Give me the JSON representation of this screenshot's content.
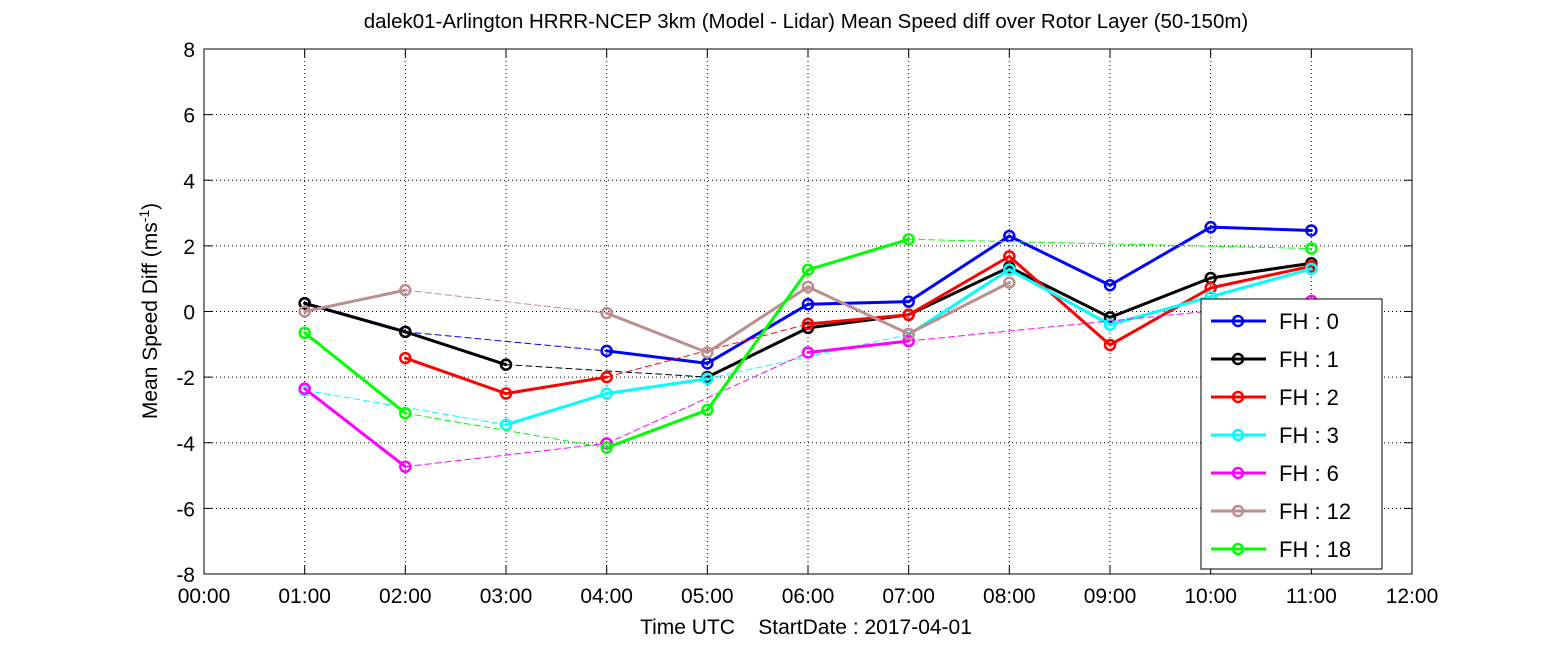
{
  "chart_data": {
    "type": "line",
    "title": "dalek01-Arlington HRRR-NCEP 3km (Model - Lidar) Mean Speed diff over Rotor Layer (50-150m)",
    "xlabel": "Time UTC    StartDate : 2017-04-01",
    "ylabel_main": "Mean Speed Diff (ms",
    "ylabel_sup": "-1",
    "ylabel_close": ")",
    "xlim": [
      0,
      12
    ],
    "ylim": [
      -8,
      8
    ],
    "grid": "dotted",
    "x_ticks": [
      0,
      1,
      2,
      3,
      4,
      5,
      6,
      7,
      8,
      9,
      10,
      11,
      12
    ],
    "x_tick_labels": [
      "00:00",
      "01:00",
      "02:00",
      "03:00",
      "04:00",
      "05:00",
      "06:00",
      "07:00",
      "08:00",
      "09:00",
      "10:00",
      "11:00",
      "12:00"
    ],
    "y_ticks": [
      -8,
      -6,
      -4,
      -2,
      0,
      2,
      4,
      6,
      8
    ],
    "y_tick_labels": [
      "-8",
      "-6",
      "-4",
      "-2",
      "0",
      "2",
      "4",
      "6",
      "8"
    ],
    "legend_position": "bottom-right",
    "series": [
      {
        "name": "FH : 0",
        "color": "#0000ff",
        "points": [
          [
            1,
            0.25
          ],
          [
            2,
            -0.62
          ],
          [
            4,
            -1.2
          ],
          [
            5,
            -1.58
          ],
          [
            6,
            0.22
          ],
          [
            7,
            0.3
          ],
          [
            8,
            2.3
          ],
          [
            9,
            0.8
          ],
          [
            10,
            2.57
          ],
          [
            11,
            2.47
          ]
        ]
      },
      {
        "name": "FH : 1",
        "color": "#000000",
        "points": [
          [
            1,
            0.25
          ],
          [
            2,
            -0.62
          ],
          [
            3,
            -1.62
          ],
          [
            5,
            -2.0
          ],
          [
            6,
            -0.5
          ],
          [
            7,
            -0.1
          ],
          [
            8,
            1.35
          ],
          [
            9,
            -0.18
          ],
          [
            10,
            1.02
          ],
          [
            11,
            1.47
          ]
        ]
      },
      {
        "name": "FH : 2",
        "color": "#ff0000",
        "points": [
          [
            2,
            -1.42
          ],
          [
            3,
            -2.5
          ],
          [
            4,
            -2.0
          ],
          [
            6,
            -0.38
          ],
          [
            7,
            -0.1
          ],
          [
            8,
            1.68
          ],
          [
            9,
            -1.02
          ],
          [
            10,
            0.72
          ],
          [
            11,
            1.38
          ]
        ]
      },
      {
        "name": "FH : 3",
        "color": "#00ffff",
        "points": [
          [
            1,
            -2.4
          ],
          [
            3,
            -3.45
          ],
          [
            4,
            -2.5
          ],
          [
            5,
            -2.05
          ],
          [
            7,
            -0.7
          ],
          [
            8,
            1.28
          ],
          [
            9,
            -0.4
          ],
          [
            10,
            0.45
          ],
          [
            11,
            1.3
          ]
        ]
      },
      {
        "name": "FH : 6",
        "color": "#ff00ff",
        "points": [
          [
            1,
            -2.35
          ],
          [
            2,
            -4.73
          ],
          [
            4,
            -4.02
          ],
          [
            6,
            -1.25
          ],
          [
            7,
            -0.9
          ],
          [
            11,
            0.32
          ]
        ]
      },
      {
        "name": "FH : 12",
        "color": "#bc8f8f",
        "points": [
          [
            1,
            0.0
          ],
          [
            2,
            0.65
          ],
          [
            4,
            -0.05
          ],
          [
            5,
            -1.25
          ],
          [
            6,
            0.75
          ],
          [
            7,
            -0.68
          ],
          [
            8,
            0.88
          ]
        ]
      },
      {
        "name": "FH : 18",
        "color": "#00ff00",
        "points": [
          [
            1,
            -0.65
          ],
          [
            2,
            -3.1
          ],
          [
            4,
            -4.15
          ],
          [
            5,
            -3.0
          ],
          [
            6,
            1.27
          ],
          [
            7,
            2.2
          ],
          [
            11,
            1.92
          ]
        ]
      }
    ]
  }
}
